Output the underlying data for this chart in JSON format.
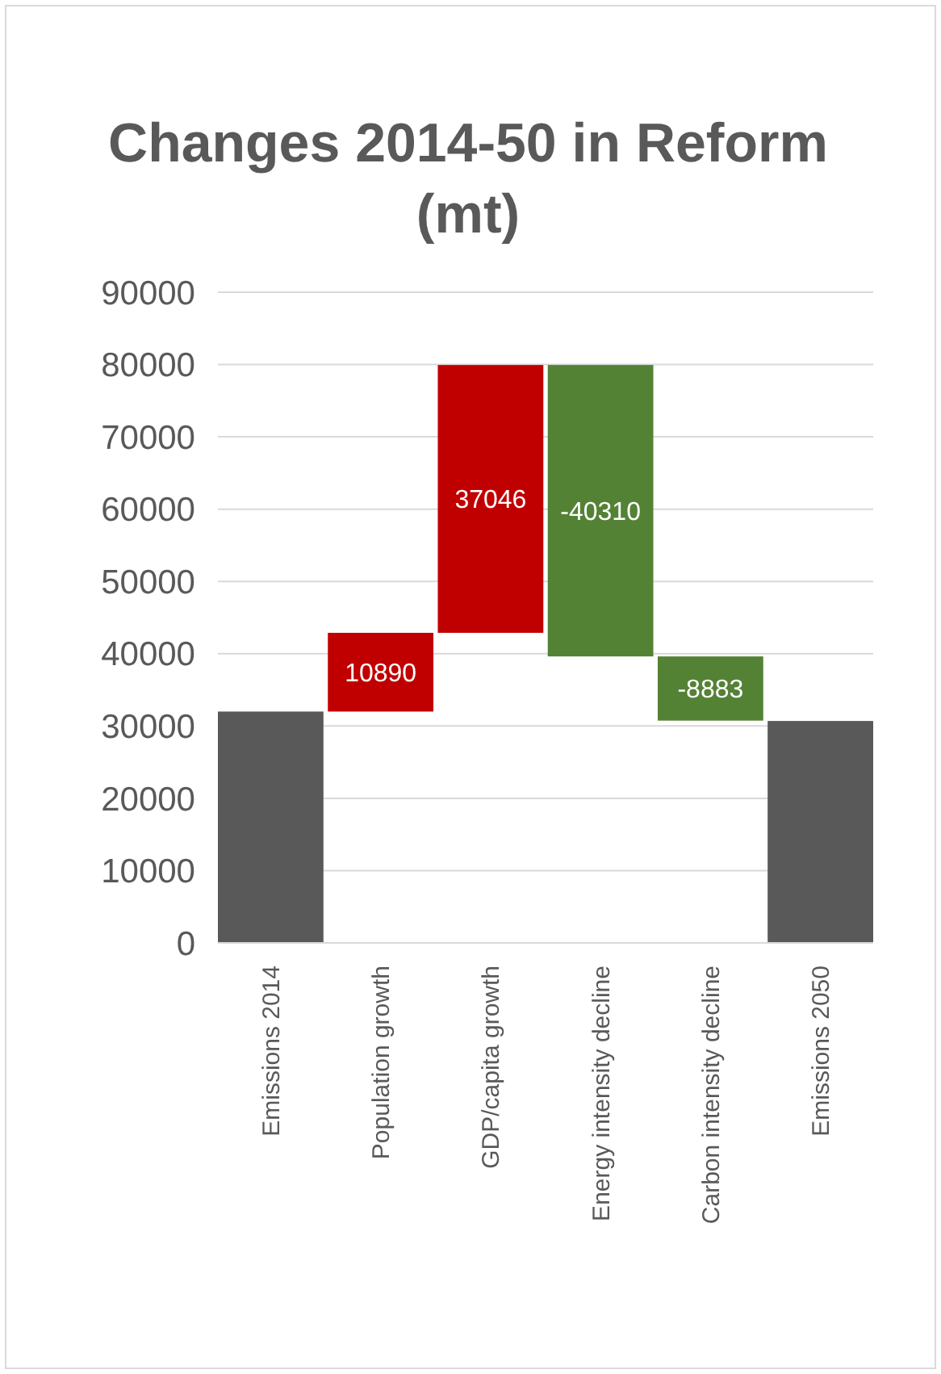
{
  "chart_data": {
    "type": "bar",
    "title": "Changes 2014-50 in Reform (mt)",
    "categories": [
      "Emissions 2014",
      "Population growth",
      "GDP/capita growth",
      "Energy intensity decline",
      "Carbon intensity decline",
      "Emissions 2050"
    ],
    "values": [
      32000,
      10890,
      37046,
      -40310,
      -8883,
      30700
    ],
    "base": [
      0,
      32000,
      42890,
      79936,
      39626,
      0
    ],
    "colors": [
      "#595959",
      "#c00000",
      "#c00000",
      "#548235",
      "#548235",
      "#595959"
    ],
    "value_labels": [
      null,
      "10890",
      "37046",
      "-40310",
      "-8883",
      null
    ],
    "ylim": [
      0,
      90000
    ],
    "yticks": [
      0,
      10000,
      20000,
      30000,
      40000,
      50000,
      60000,
      70000,
      80000,
      90000
    ],
    "grid": "y"
  }
}
